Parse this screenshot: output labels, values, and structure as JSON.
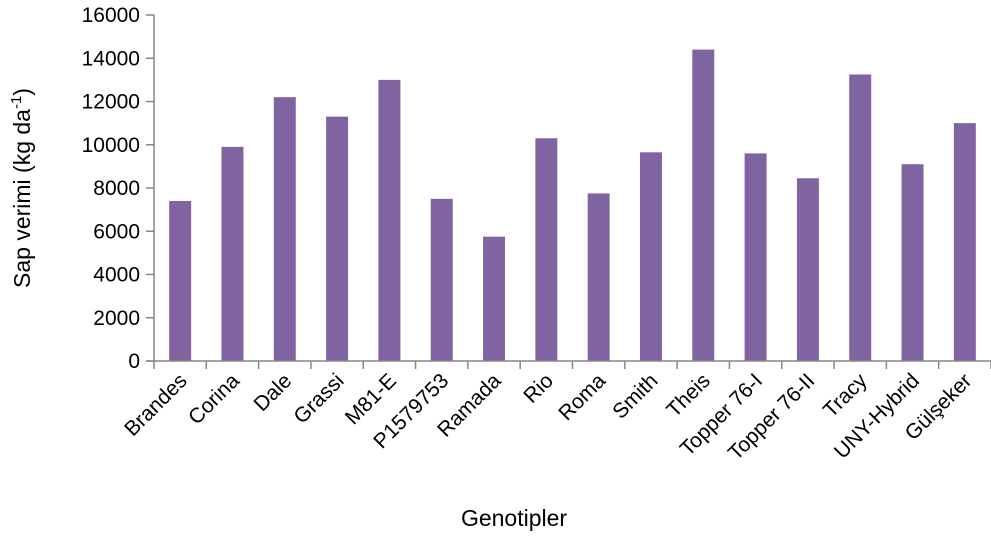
{
  "chart_data": {
    "type": "bar",
    "categories": [
      "Brandes",
      "Corina",
      "Dale",
      "Grassi",
      "M81-E",
      "P1579753",
      "Ramada",
      "Rio",
      "Roma",
      "Smith",
      "Theis",
      "Topper 76-I",
      "Topper 76-II",
      "Tracy",
      "UNY-Hybrid",
      "Gülşeker"
    ],
    "values": [
      7400,
      9900,
      12200,
      11300,
      13000,
      7500,
      5750,
      10300,
      7750,
      9650,
      14400,
      9600,
      8450,
      13250,
      9100,
      11000
    ],
    "xlabel": "Genotipler",
    "ylabel": {
      "main": "Sap verimi (kg da",
      "superscript": "-1",
      "close": ")"
    },
    "ylim": [
      0,
      16000
    ],
    "yticks": [
      0,
      2000,
      4000,
      6000,
      8000,
      10000,
      12000,
      14000,
      16000
    ],
    "grid": false,
    "legend": "none",
    "bar_color": "#8064a2",
    "axis_color": "#868686"
  }
}
